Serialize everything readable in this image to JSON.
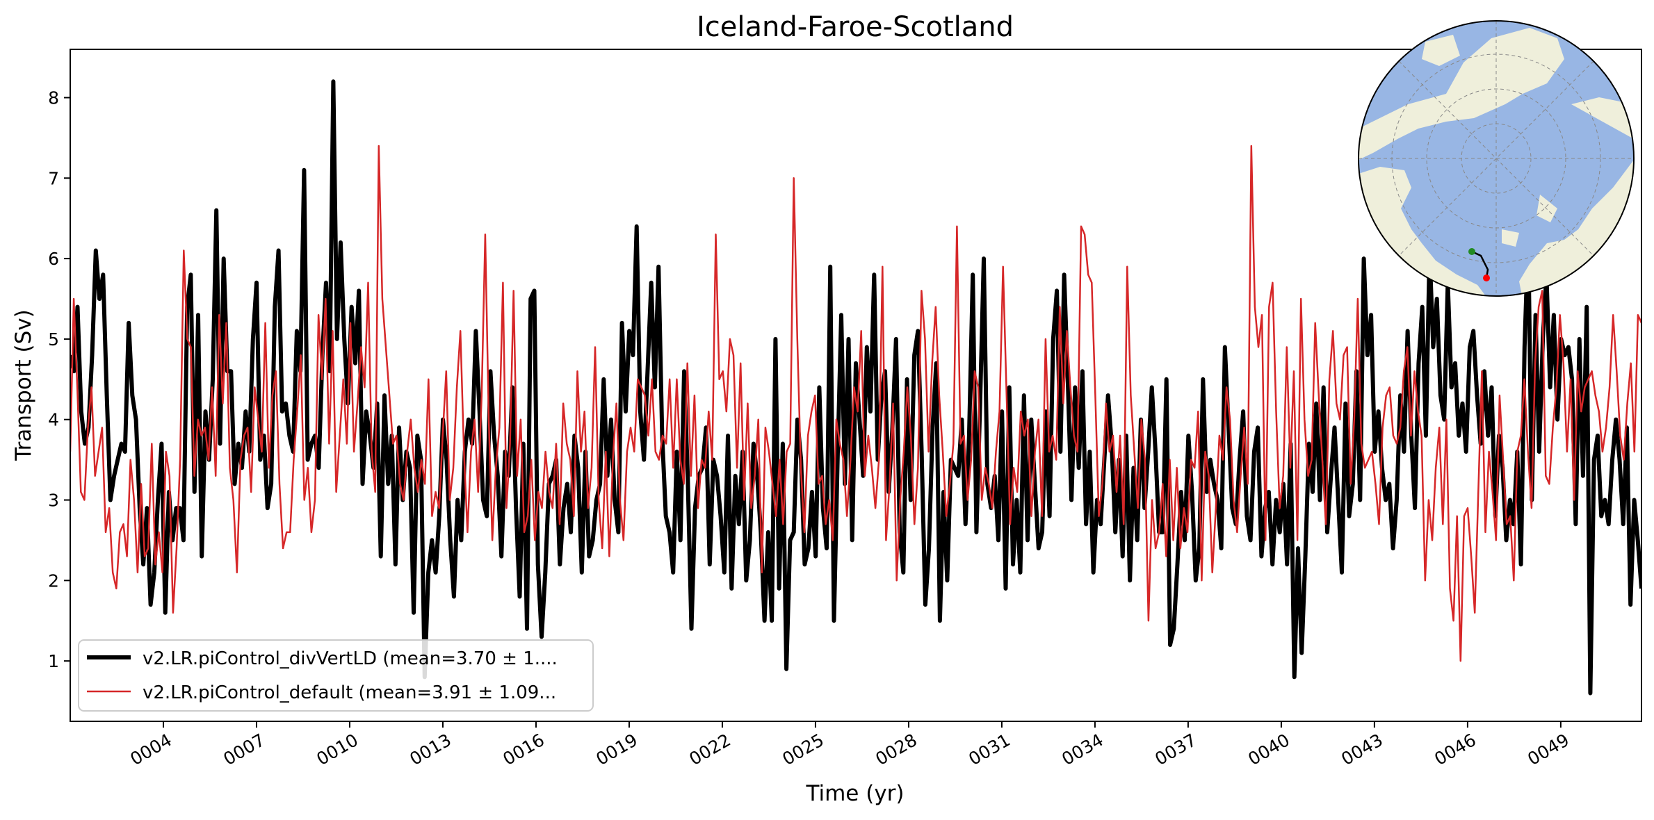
{
  "chart_data": {
    "type": "line",
    "title": "Iceland-Faroe-Scotland",
    "xlabel": "Time (yr)",
    "ylabel": "Transport (Sv)",
    "xlim": [
      1.0,
      51.6
    ],
    "ylim": [
      0.25,
      8.6
    ],
    "grid": false,
    "legend_position": "lower-left",
    "xticks": [
      4,
      7,
      10,
      13,
      16,
      19,
      22,
      25,
      28,
      31,
      34,
      37,
      40,
      43,
      46,
      49
    ],
    "xtick_labels": [
      "0004",
      "0007",
      "0010",
      "0013",
      "0016",
      "0019",
      "0022",
      "0025",
      "0028",
      "0031",
      "0034",
      "0037",
      "0040",
      "0043",
      "0046",
      "0049"
    ],
    "yticks": [
      1,
      2,
      3,
      4,
      5,
      6,
      7,
      8
    ],
    "ytick_labels": [
      "1",
      "2",
      "3",
      "4",
      "5",
      "6",
      "7",
      "8"
    ],
    "series": [
      {
        "name": "v2.LR.piControl_divVertLD (mean=3.70 ± 1....",
        "color": "#000000",
        "values": [
          4.8,
          4.6,
          5.4,
          4.1,
          3.7,
          3.9,
          4.8,
          6.1,
          5.5,
          5.8,
          4.3,
          3.0,
          3.3,
          3.5,
          3.7,
          3.6,
          5.2,
          4.3,
          4.0,
          2.9,
          2.2,
          2.9,
          1.7,
          2.1,
          3.0,
          3.7,
          1.6,
          3.1,
          2.5,
          2.9,
          2.9,
          2.5,
          5.4,
          5.8,
          3.1,
          5.3,
          2.3,
          4.1,
          3.5,
          4.5,
          6.6,
          3.7,
          6.0,
          4.6,
          4.6,
          3.2,
          3.7,
          3.4,
          4.1,
          3.6,
          5.0,
          5.7,
          3.5,
          3.8,
          2.9,
          3.2,
          5.4,
          6.1,
          4.1,
          4.2,
          3.8,
          3.6,
          5.1,
          4.6,
          7.1,
          3.5,
          3.7,
          3.8,
          3.4,
          4.8,
          5.7,
          4.6,
          8.2,
          5.0,
          6.2,
          5.0,
          4.2,
          5.4,
          4.7,
          5.6,
          3.2,
          4.1,
          3.8,
          3.4,
          4.2,
          2.3,
          4.3,
          3.2,
          3.8,
          2.2,
          3.9,
          3.0,
          3.6,
          3.4,
          1.6,
          3.8,
          3.5,
          0.8,
          2.1,
          2.5,
          2.1,
          2.8,
          4.0,
          3.5,
          2.5,
          1.8,
          3.0,
          2.5,
          3.6,
          4.0,
          3.7,
          5.1,
          4.1,
          3.0,
          2.8,
          4.6,
          3.8,
          3.3,
          2.3,
          3.6,
          3.3,
          4.4,
          2.9,
          1.8,
          3.7,
          1.4,
          5.5,
          5.6,
          2.2,
          1.3,
          2.1,
          3.2,
          3.3,
          3.5,
          2.2,
          2.9,
          3.2,
          2.6,
          3.8,
          3.4,
          2.1,
          3.6,
          2.3,
          2.5,
          3.0,
          3.2,
          4.5,
          3.3,
          4.0,
          3.0,
          2.6,
          5.2,
          4.1,
          5.1,
          4.8,
          6.4,
          4.1,
          3.5,
          4.6,
          5.7,
          4.4,
          5.9,
          3.8,
          2.8,
          2.6,
          2.1,
          3.6,
          2.5,
          4.6,
          3.3,
          1.4,
          2.9,
          3.3,
          3.4,
          3.9,
          2.2,
          3.5,
          3.3,
          2.8,
          2.1,
          3.8,
          1.9,
          3.3,
          2.7,
          3.6,
          2.0,
          2.5,
          3.7,
          3.3,
          2.6,
          1.5,
          2.6,
          1.5,
          5.0,
          1.9,
          3.7,
          0.9,
          2.5,
          2.6,
          4.0,
          3.5,
          2.2,
          2.4,
          3.1,
          2.3,
          4.4,
          2.9,
          2.4,
          5.9,
          1.5,
          3.5,
          5.3,
          3.2,
          5.0,
          2.5,
          4.7,
          4.0,
          3.3,
          4.9,
          4.1,
          5.8,
          3.5,
          4.3,
          4.6,
          3.1,
          3.9,
          5.0,
          2.6,
          2.1,
          4.5,
          3.0,
          4.8,
          5.1,
          3.6,
          1.7,
          2.4,
          3.9,
          4.7,
          1.5,
          3.1,
          2.0,
          3.5,
          3.4,
          3.3,
          4.0,
          2.7,
          3.8,
          5.8,
          2.6,
          4.2,
          6.0,
          3.2,
          2.9,
          3.3,
          2.5,
          4.1,
          1.9,
          4.4,
          2.2,
          3.0,
          2.1,
          4.3,
          2.5,
          4.0,
          3.2,
          2.4,
          2.6,
          4.1,
          2.8,
          5.0,
          5.6,
          3.6,
          5.8,
          4.5,
          3.0,
          4.4,
          3.4,
          4.6,
          2.7,
          3.6,
          2.1,
          3.0,
          2.7,
          3.5,
          4.3,
          3.7,
          2.6,
          3.5,
          2.3,
          3.8,
          2.0,
          3.4,
          2.5,
          4.0,
          2.9,
          3.6,
          4.4,
          3.6,
          2.6,
          2.6,
          4.5,
          1.2,
          1.4,
          2.2,
          3.1,
          2.5,
          3.8,
          3.1,
          2.0,
          2.4,
          4.5,
          3.1,
          3.5,
          3.2,
          3.0,
          2.4,
          4.9,
          3.9,
          2.9,
          2.7,
          3.5,
          4.1,
          2.8,
          2.5,
          3.6,
          3.9,
          2.3,
          2.9,
          3.1,
          2.2,
          3.0,
          2.6,
          3.2,
          2.2,
          3.7,
          0.8,
          2.4,
          1.1,
          2.3,
          3.7,
          3.1,
          4.2,
          3.0,
          4.4,
          2.6,
          3.3,
          3.9,
          3.0,
          2.1,
          4.2,
          2.8,
          3.2,
          4.6,
          3.0,
          6.0,
          4.8,
          5.3,
          3.6,
          4.1,
          3.4,
          3.0,
          3.2,
          2.4,
          3.0,
          4.3,
          3.6,
          5.1,
          3.8,
          2.9,
          4.7,
          5.4,
          3.8,
          6.1,
          4.9,
          5.5,
          4.3,
          4.0,
          5.7,
          4.4,
          4.7,
          3.8,
          4.2,
          3.6,
          4.9,
          5.1,
          4.3,
          3.7,
          4.6,
          3.8,
          4.4,
          2.8,
          3.8,
          3.4,
          2.5,
          3.0,
          2.7,
          3.6,
          2.2,
          4.9,
          6.3,
          3.0,
          5.3,
          3.6,
          5.0,
          5.8,
          4.4,
          5.3,
          4.0,
          5.0,
          4.8,
          4.9,
          4.5,
          2.7,
          5.0,
          3.3,
          5.4,
          0.6,
          3.5,
          3.8,
          2.8,
          3.0,
          2.7,
          3.5,
          4.0,
          3.5,
          2.7,
          3.9,
          1.7,
          3.0,
          2.5,
          1.9
        ]
      },
      {
        "name": "v2.LR.piControl_default (mean=3.91 ± 1.09...",
        "color": "#d62728",
        "values": [
          3.6,
          5.5,
          4.4,
          3.1,
          3.0,
          3.9,
          4.4,
          3.3,
          3.6,
          3.9,
          2.6,
          2.9,
          2.1,
          1.9,
          2.6,
          2.7,
          2.3,
          3.5,
          3.0,
          2.1,
          3.2,
          2.3,
          2.4,
          3.7,
          2.2,
          2.6,
          2.1,
          3.6,
          3.3,
          1.6,
          2.4,
          3.5,
          6.1,
          5.0,
          4.9,
          3.3,
          4.0,
          3.8,
          3.9,
          3.5,
          4.4,
          3.3,
          5.3,
          4.2,
          5.2,
          3.4,
          3.0,
          2.1,
          3.5,
          3.8,
          3.9,
          3.1,
          4.4,
          4.0,
          3.6,
          5.2,
          3.4,
          4.3,
          4.6,
          3.2,
          2.4,
          2.6,
          2.6,
          3.5,
          4.1,
          4.8,
          3.0,
          3.4,
          2.6,
          3.0,
          5.3,
          4.5,
          5.5,
          3.7,
          5.1,
          3.1,
          3.8,
          4.5,
          3.7,
          5.2,
          3.6,
          4.2,
          4.9,
          4.4,
          5.7,
          3.6,
          3.1,
          7.4,
          5.5,
          4.9,
          4.3,
          3.7,
          3.8,
          3.2,
          3.0,
          3.6,
          4.0,
          3.4,
          3.1,
          3.5,
          3.2,
          4.5,
          2.8,
          3.1,
          2.9,
          3.8,
          4.6,
          3.0,
          3.4,
          4.4,
          5.1,
          3.6,
          2.6,
          3.6,
          4.0,
          3.1,
          4.3,
          6.3,
          4.0,
          2.5,
          3.4,
          3.9,
          5.7,
          2.9,
          3.7,
          5.6,
          3.3,
          4.0,
          2.6,
          2.8,
          3.5,
          2.5,
          3.1,
          2.9,
          3.6,
          3.1,
          2.9,
          3.7,
          2.7,
          4.2,
          3.7,
          3.5,
          2.8,
          4.6,
          3.6,
          4.1,
          2.9,
          3.4,
          4.9,
          3.0,
          2.4,
          3.6,
          2.3,
          3.5,
          4.2,
          3.0,
          2.5,
          3.6,
          3.9,
          3.6,
          4.5,
          4.4,
          4.3,
          3.8,
          4.5,
          3.6,
          3.5,
          3.8,
          3.7,
          4.5,
          3.4,
          4.5,
          3.5,
          3.2,
          4.7,
          3.3,
          4.3,
          2.9,
          3.5,
          3.4,
          4.1,
          3.5,
          6.3,
          4.5,
          4.6,
          4.1,
          5.0,
          4.8,
          3.4,
          4.7,
          3.0,
          4.2,
          2.9,
          3.3,
          4.0,
          2.1,
          3.9,
          3.6,
          3.2,
          2.8,
          3.5,
          2.7,
          3.6,
          3.7,
          7.0,
          5.0,
          3.4,
          2.6,
          3.8,
          4.1,
          4.3,
          3.2,
          3.3,
          2.7,
          3.0,
          2.5,
          4.0,
          3.7,
          3.5,
          2.8,
          3.5,
          4.4,
          4.1,
          5.1,
          3.3,
          3.8,
          3.4,
          2.9,
          3.5,
          5.9,
          2.5,
          3.2,
          4.2,
          2.0,
          3.0,
          3.6,
          4.4,
          3.8,
          2.7,
          3.4,
          5.6,
          5.0,
          3.6,
          4.7,
          5.4,
          4.3,
          3.6,
          2.8,
          3.2,
          3.7,
          6.4,
          3.7,
          3.8,
          3.0,
          3.5,
          4.6,
          4.4,
          3.0,
          3.4,
          3.2,
          2.9,
          3.6,
          4.1,
          5.9,
          4.3,
          2.7,
          3.4,
          3.1,
          4.1,
          3.8,
          4.0,
          2.8,
          3.6,
          4.0,
          2.8,
          5.0,
          3.6,
          3.8,
          3.5,
          5.4,
          4.2,
          5.1,
          4.4,
          3.8,
          3.6,
          6.4,
          6.3,
          5.8,
          5.7,
          4.3,
          2.8,
          3.2,
          4.2,
          3.6,
          3.8,
          3.1,
          3.8,
          2.7,
          5.9,
          4.3,
          3.6,
          2.9,
          4.0,
          3.5,
          1.5,
          3.0,
          2.4,
          2.6,
          3.2,
          2.3,
          3.5,
          2.5,
          3.4,
          2.4,
          2.9,
          2.6,
          3.5,
          3.4,
          4.1,
          2.0,
          3.6,
          3.3,
          2.1,
          2.9,
          3.8,
          3.5,
          4.4,
          4.0,
          3.0,
          2.6,
          3.3,
          3.9,
          3.2,
          7.4,
          5.4,
          4.9,
          5.3,
          2.5,
          5.4,
          5.7,
          4.1,
          2.9,
          3.3,
          4.9,
          3.4,
          4.6,
          2.5,
          5.5,
          4.0,
          3.3,
          3.5,
          5.2,
          4.3,
          3.5,
          2.7,
          4.5,
          5.1,
          4.2,
          4.0,
          4.8,
          4.9,
          3.2,
          4.0,
          5.5,
          3.7,
          3.4,
          3.5,
          3.6,
          3.2,
          2.7,
          3.9,
          4.3,
          4.4,
          3.8,
          3.7,
          3.9,
          4.6,
          4.9,
          3.8,
          4.6,
          4.1,
          3.8,
          2.0,
          3.0,
          2.5,
          3.4,
          3.9,
          2.7,
          4.0,
          1.9,
          1.5,
          2.8,
          1.0,
          2.8,
          2.9,
          2.3,
          1.6,
          3.1,
          4.6,
          2.6,
          3.6,
          3.1,
          2.5,
          4.3,
          3.5,
          2.7,
          2.8,
          2.0,
          3.6,
          3.8,
          4.5,
          3.6,
          2.9,
          4.7,
          5.4,
          5.6,
          3.3,
          3.2,
          3.9,
          4.4,
          5.3,
          4.7,
          3.6,
          4.5,
          3.0,
          4.6,
          4.1,
          4.4,
          4.5,
          4.6,
          4.3,
          4.1,
          3.6,
          3.9,
          4.4,
          5.3,
          4.6,
          3.8,
          3.5,
          4.2,
          4.7,
          3.6,
          5.3,
          5.2
        ]
      }
    ]
  },
  "inset_map": {
    "land_color": "#efefdb",
    "ocean_color": "#98b6e4",
    "transect_start_color": "#228b22",
    "transect_end_color": "#ff0000",
    "transect_line_color": "#000000"
  }
}
